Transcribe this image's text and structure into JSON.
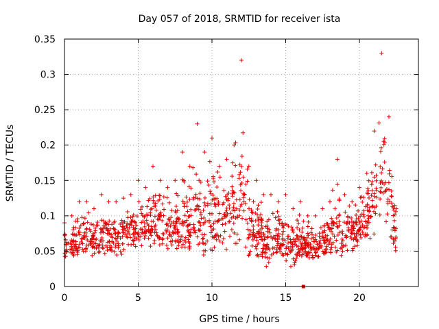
{
  "chart_data": {
    "type": "scatter",
    "title": "Day 057 of 2018, SRMTID for receiver ista",
    "xlabel": "GPS time / hours",
    "ylabel": "SRMTID / TECUs",
    "xlim": [
      0,
      24
    ],
    "ylim": [
      0,
      0.35
    ],
    "x_ticks": [
      "0",
      "5",
      "10",
      "15",
      "20"
    ],
    "y_ticks": [
      "0",
      "0.05",
      "0.1",
      "0.15",
      "0.2",
      "0.25",
      "0.3",
      "0.35"
    ],
    "grid": "dotted",
    "marker": "+",
    "marker_color": "#e00000",
    "envelope": {
      "x": [
        0,
        0.5,
        1,
        1.5,
        2,
        2.5,
        3,
        3.5,
        4,
        4.5,
        5,
        5.5,
        6,
        6.5,
        7,
        7.5,
        8,
        8.5,
        9,
        9.5,
        10,
        10.5,
        11,
        11.5,
        12,
        12.5,
        13,
        13.5,
        14,
        14.5,
        15,
        15.5,
        16,
        16.5,
        17,
        17.5,
        18,
        18.5,
        19,
        19.5,
        20,
        20.5,
        21,
        21.5,
        22,
        22.5
      ],
      "low": [
        0.03,
        0.035,
        0.04,
        0.045,
        0.04,
        0.045,
        0.045,
        0.04,
        0.045,
        0.045,
        0.045,
        0.05,
        0.05,
        0.05,
        0.045,
        0.045,
        0.04,
        0.035,
        0.045,
        0.04,
        0.04,
        0.045,
        0.05,
        0.05,
        0.035,
        0.03,
        0.03,
        0.025,
        0.025,
        0.03,
        0.025,
        0.025,
        0.025,
        0.03,
        0.03,
        0.035,
        0.035,
        0.04,
        0.04,
        0.04,
        0.05,
        0.06,
        0.07,
        0.08,
        0.06,
        0.035
      ],
      "high": [
        0.09,
        0.1,
        0.12,
        0.12,
        0.11,
        0.13,
        0.12,
        0.12,
        0.125,
        0.13,
        0.15,
        0.14,
        0.17,
        0.15,
        0.14,
        0.15,
        0.19,
        0.17,
        0.23,
        0.19,
        0.21,
        0.17,
        0.18,
        0.2,
        0.32,
        0.17,
        0.15,
        0.13,
        0.13,
        0.12,
        0.13,
        0.11,
        0.12,
        0.1,
        0.1,
        0.11,
        0.12,
        0.18,
        0.13,
        0.12,
        0.14,
        0.16,
        0.22,
        0.33,
        0.24,
        0.11
      ]
    },
    "outlier_point": {
      "x": 16.2,
      "y": 0.0
    }
  }
}
